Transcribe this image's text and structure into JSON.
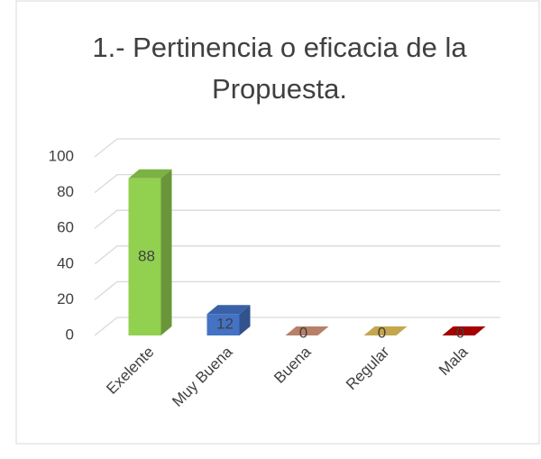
{
  "chart_data": {
    "type": "bar3d",
    "title": "1.- Pertinencia o eficacia de la Propuesta.",
    "categories": [
      "Exelente",
      "Muy Buena",
      "Buena",
      "Regular",
      "Mala"
    ],
    "values": [
      88,
      12,
      0,
      0,
      0
    ],
    "colors": [
      "#92d050",
      "#4472c4",
      "#d9977a",
      "#e6c35a",
      "#c00000"
    ],
    "ylim": [
      0,
      100
    ],
    "yticks": [
      0,
      20,
      40,
      60,
      80,
      100
    ],
    "grid": true
  }
}
